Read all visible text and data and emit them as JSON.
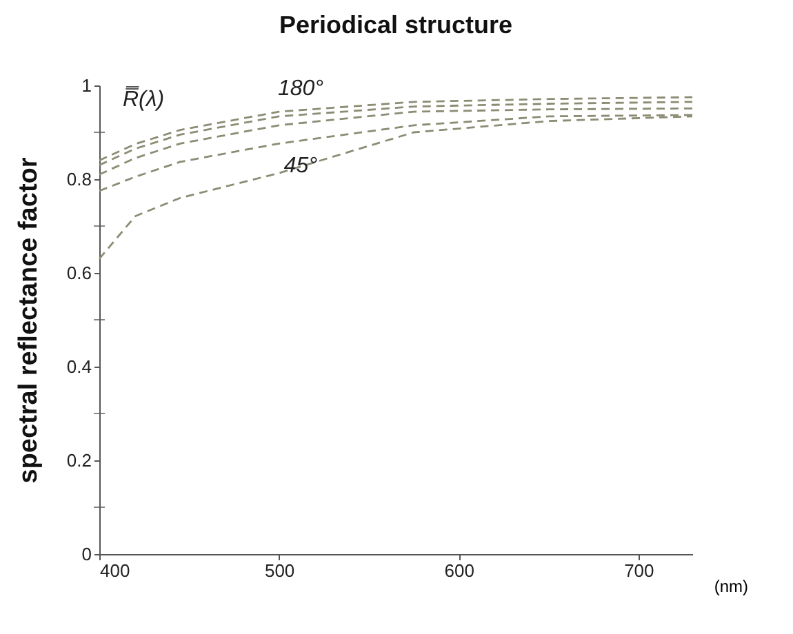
{
  "chart_data": {
    "type": "line",
    "title": "Periodical structure",
    "xlabel": "(nm)",
    "ylabel": "spectral reflectance factor",
    "x": [
      400,
      420,
      445,
      500,
      575,
      650,
      730
    ],
    "series": [
      {
        "color": "#8c8c74",
        "values": [
          0.84,
          0.875,
          0.905,
          0.944,
          0.965,
          0.971,
          0.975
        ]
      },
      {
        "color": "#8c8c74",
        "values": [
          0.83,
          0.865,
          0.895,
          0.934,
          0.955,
          0.961,
          0.965
        ]
      },
      {
        "color": "#8c8c74",
        "values": [
          0.81,
          0.845,
          0.876,
          0.915,
          0.944,
          0.949,
          0.951
        ]
      },
      {
        "color": "#8c8c74",
        "values": [
          0.775,
          0.805,
          0.837,
          0.876,
          0.915,
          0.934,
          0.937
        ]
      },
      {
        "color": "#8c8c74",
        "values": [
          0.63,
          0.721,
          0.76,
          0.813,
          0.9,
          0.924,
          0.934
        ]
      }
    ],
    "line_style": "dashed",
    "grid": false,
    "legend": false,
    "xlim": [
      400,
      730
    ],
    "xticks": [
      400,
      500,
      600,
      700
    ],
    "ylim": [
      0,
      1
    ],
    "yticks": [
      0,
      {
        "value": 0.1,
        "label": null
      },
      0.2,
      {
        "value": 0.3,
        "label": null
      },
      0.4,
      {
        "value": 0.5,
        "label": null
      },
      0.6,
      {
        "value": 0.7,
        "label": null
      },
      0.8,
      {
        "value": 0.9,
        "label": null
      },
      1
    ],
    "annotations": [
      "R̿(λ)",
      "180°",
      "45°"
    ]
  }
}
